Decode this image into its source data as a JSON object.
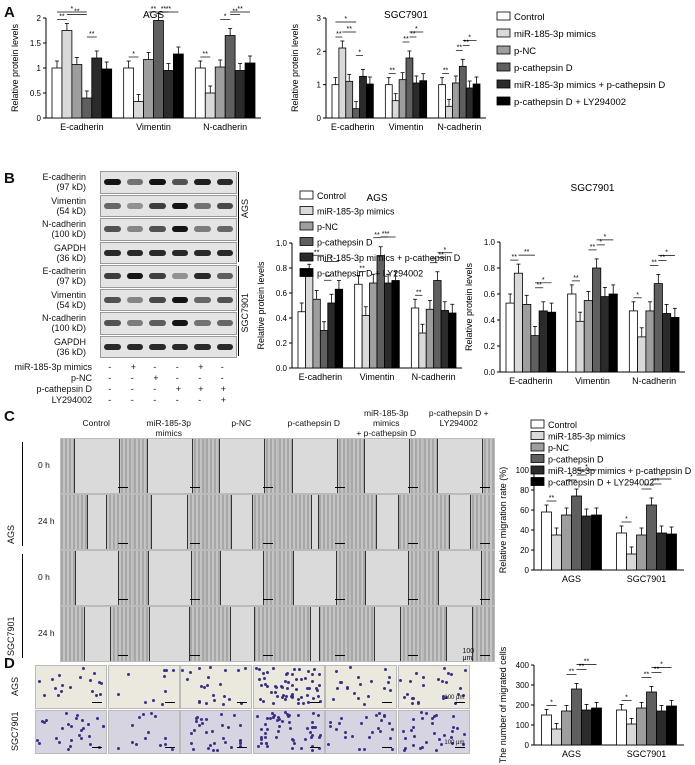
{
  "panels": {
    "A": "A",
    "B": "B",
    "C": "C",
    "D": "D"
  },
  "colors": {
    "control": "#ffffff",
    "mimics": "#d9d9d9",
    "pnc": "#9e9e9e",
    "pcath": "#5f5f5f",
    "combo": "#2b2b2b",
    "ly": "#000000",
    "wound_bg": "#bcbcbc",
    "crystal_violet": "#3d2f8a",
    "transwell_bg": "#ebe8dd"
  },
  "legend": {
    "items": [
      {
        "label": "Control",
        "color": "#ffffff"
      },
      {
        "label": "miR-185-3p mimics",
        "color": "#d9d9d9"
      },
      {
        "label": "p-NC",
        "color": "#9e9e9e"
      },
      {
        "label": "p-cathepsin D",
        "color": "#5f5f5f"
      },
      {
        "label": "miR-185-3p mimics + p-cathepsin D",
        "color": "#2b2b2b"
      },
      {
        "label": "p-cathepsin D + LY294002",
        "color": "#000000"
      }
    ]
  },
  "sig_labels": {
    "one": "*",
    "two": "**"
  },
  "blot": {
    "rows": [
      {
        "label": "E-cadherin",
        "sub": "(97 kD)"
      },
      {
        "label": "Vimentin",
        "sub": "(54 kD)"
      },
      {
        "label": "N-cadherin",
        "sub": "(100 kD)"
      },
      {
        "label": "GAPDH",
        "sub": "(36 kD)"
      },
      {
        "label": "E-cadherin",
        "sub": "(97 kD)"
      },
      {
        "label": "Vimentin",
        "sub": "(54 kD)"
      },
      {
        "label": "N-cadherin",
        "sub": "(100 kD)"
      },
      {
        "label": "GAPDH",
        "sub": "(36 kD)"
      }
    ],
    "cell_ags": "AGS",
    "cell_sgc": "SGC7901",
    "treat_rows": [
      {
        "label": "miR-185-3p mimics",
        "marks": [
          "-",
          "+",
          "-",
          "-",
          "+",
          "-"
        ]
      },
      {
        "label": "p-NC",
        "marks": [
          "-",
          "-",
          "+",
          "-",
          "-",
          "-"
        ]
      },
      {
        "label": "p-cathepsin D",
        "marks": [
          "-",
          "-",
          "-",
          "+",
          "+",
          "+"
        ]
      },
      {
        "label": "LY294002",
        "marks": [
          "-",
          "-",
          "-",
          "-",
          "-",
          "+"
        ]
      }
    ]
  },
  "wound": {
    "columns": [
      "Control",
      "miR-185-3p mimics",
      "p-NC",
      "p-cathepsin D",
      "miR-185-3p mimics\n+ p-cathepsin D",
      "p-cathepsin D +\nLY294002"
    ],
    "rows": [
      {
        "cell": "AGS",
        "time": "0 h"
      },
      {
        "cell": "",
        "time": "24 h"
      },
      {
        "cell": "SGC7901",
        "time": "0 h"
      },
      {
        "cell": "",
        "time": "24 h"
      }
    ],
    "scale": "100 μm"
  },
  "transwell": {
    "rows": [
      "AGS",
      "SGC7901"
    ],
    "scale": "100 μm"
  },
  "chart_data": [
    {
      "id": "A_AGS",
      "type": "bar",
      "title": "AGS",
      "ylabel": "Relative protein levels",
      "ylim": [
        0,
        2
      ],
      "yticks": [
        0,
        0.5,
        1,
        1.5,
        2
      ],
      "categories": [
        "E-cadherin",
        "Vimentin",
        "N-cadherin"
      ],
      "series": [
        {
          "name": "Control",
          "values": [
            1.0,
            1.0,
            1.0
          ]
        },
        {
          "name": "miR-185-3p mimics",
          "values": [
            1.75,
            0.33,
            0.5
          ]
        },
        {
          "name": "p-NC",
          "values": [
            1.07,
            1.17,
            1.02
          ]
        },
        {
          "name": "p-cathepsin D",
          "values": [
            0.4,
            1.95,
            1.65
          ]
        },
        {
          "name": "miR-185-3p mimics + p-cathepsin D",
          "values": [
            1.2,
            0.95,
            0.95
          ]
        },
        {
          "name": "p-cathepsin D + LY294002",
          "values": [
            0.98,
            1.28,
            1.1
          ]
        }
      ]
    },
    {
      "id": "A_SGC",
      "type": "bar",
      "title": "SGC7901",
      "ylabel": "Relative protein levels",
      "ylim": [
        0,
        3
      ],
      "yticks": [
        0,
        1,
        2,
        3
      ],
      "categories": [
        "E-cadherin",
        "Vimentin",
        "N-cadherin"
      ],
      "series": [
        {
          "name": "Control",
          "values": [
            1.0,
            1.0,
            1.0
          ]
        },
        {
          "name": "miR-185-3p mimics",
          "values": [
            2.1,
            0.52,
            0.35
          ]
        },
        {
          "name": "p-NC",
          "values": [
            1.1,
            1.15,
            1.05
          ]
        },
        {
          "name": "p-cathepsin D",
          "values": [
            0.28,
            1.8,
            1.55
          ]
        },
        {
          "name": "miR-185-3p mimics + p-cathepsin D",
          "values": [
            1.25,
            1.05,
            0.9
          ]
        },
        {
          "name": "p-cathepsin D + LY294002",
          "values": [
            1.02,
            1.12,
            1.02
          ]
        }
      ]
    },
    {
      "id": "B_AGS",
      "type": "bar",
      "title": "AGS",
      "ylabel": "Relative protein levels",
      "ylim": [
        0,
        1
      ],
      "yticks": [
        0,
        0.2,
        0.4,
        0.6,
        0.8,
        1.0
      ],
      "categories": [
        "E-cadherin",
        "Vimentin",
        "N-cadherin"
      ],
      "series": [
        {
          "name": "Control",
          "values": [
            0.45,
            0.67,
            0.48
          ]
        },
        {
          "name": "miR-185-3p mimics",
          "values": [
            0.76,
            0.42,
            0.28
          ]
        },
        {
          "name": "p-NC",
          "values": [
            0.55,
            0.68,
            0.47
          ]
        },
        {
          "name": "p-cathepsin D",
          "values": [
            0.3,
            0.9,
            0.7
          ]
        },
        {
          "name": "miR-185-3p mimics + p-cathepsin D",
          "values": [
            0.52,
            0.68,
            0.46
          ]
        },
        {
          "name": "p-cathepsin D + LY294002",
          "values": [
            0.63,
            0.7,
            0.44
          ]
        }
      ]
    },
    {
      "id": "B_SGC",
      "type": "bar",
      "title": "SGC7901",
      "ylabel": "Relative protein levels",
      "ylim": [
        0,
        1
      ],
      "yticks": [
        0,
        0.2,
        0.4,
        0.6,
        0.8,
        1.0
      ],
      "categories": [
        "E-cadherin",
        "Vimentin",
        "N-cadherin"
      ],
      "series": [
        {
          "name": "Control",
          "values": [
            0.53,
            0.6,
            0.47
          ]
        },
        {
          "name": "miR-185-3p mimics",
          "values": [
            0.76,
            0.39,
            0.27
          ]
        },
        {
          "name": "p-NC",
          "values": [
            0.52,
            0.55,
            0.47
          ]
        },
        {
          "name": "p-cathepsin D",
          "values": [
            0.28,
            0.8,
            0.68
          ]
        },
        {
          "name": "miR-185-3p mimics + p-cathepsin D",
          "values": [
            0.47,
            0.58,
            0.45
          ]
        },
        {
          "name": "p-cathepsin D + LY294002",
          "values": [
            0.46,
            0.6,
            0.42
          ]
        }
      ]
    },
    {
      "id": "C",
      "type": "bar",
      "title": "",
      "ylabel": "Relative migration rate (%)",
      "ylim": [
        0,
        100
      ],
      "yticks": [
        0,
        20,
        40,
        60,
        80,
        100
      ],
      "categories": [
        "AGS",
        "SGC7901"
      ],
      "series": [
        {
          "name": "Control",
          "values": [
            58,
            37
          ]
        },
        {
          "name": "miR-185-3p mimics",
          "values": [
            35,
            16
          ]
        },
        {
          "name": "p-NC",
          "values": [
            55,
            35
          ]
        },
        {
          "name": "p-cathepsin D",
          "values": [
            74,
            65
          ]
        },
        {
          "name": "miR-185-3p mimics + p-cathepsin D",
          "values": [
            54,
            37
          ]
        },
        {
          "name": "p-cathepsin D + LY294002",
          "values": [
            55,
            36
          ]
        }
      ]
    },
    {
      "id": "D",
      "type": "bar",
      "title": "",
      "ylabel": "The number of migrated cells",
      "ylim": [
        0,
        400
      ],
      "yticks": [
        0,
        100,
        200,
        300,
        400
      ],
      "categories": [
        "AGS",
        "SGC7901"
      ],
      "series": [
        {
          "name": "Control",
          "values": [
            150,
            175
          ]
        },
        {
          "name": "miR-185-3p mimics",
          "values": [
            80,
            105
          ]
        },
        {
          "name": "p-NC",
          "values": [
            170,
            185
          ]
        },
        {
          "name": "p-cathepsin D",
          "values": [
            280,
            265
          ]
        },
        {
          "name": "miR-185-3p mimics + p-cathepsin D",
          "values": [
            175,
            170
          ]
        },
        {
          "name": "p-cathepsin D + LY294002",
          "values": [
            185,
            195
          ]
        }
      ]
    }
  ]
}
